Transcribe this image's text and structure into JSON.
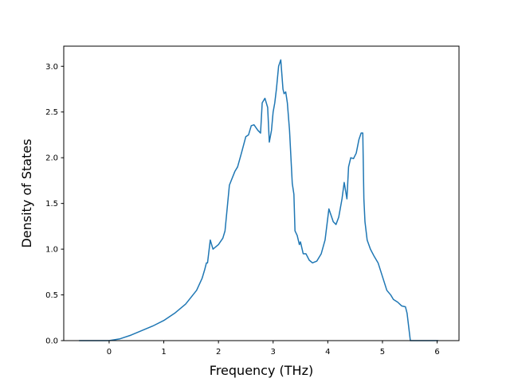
{
  "chart_data": {
    "type": "line",
    "title": "",
    "xlabel": "Frequency (THz)",
    "ylabel": "Density of States",
    "xlim": [
      -0.83,
      6.4
    ],
    "ylim": [
      0.0,
      3.22
    ],
    "grid": false,
    "legend": "none",
    "line_color": "#1f77b4",
    "x_ticks": [
      0,
      1,
      2,
      3,
      4,
      5,
      6
    ],
    "y_ticks": [
      0.0,
      0.5,
      1.0,
      1.5,
      2.0,
      2.5,
      3.0
    ],
    "x_tick_labels": [
      "0",
      "1",
      "2",
      "3",
      "4",
      "5",
      "6"
    ],
    "y_tick_labels": [
      "0.0",
      "0.5",
      "1.0",
      "1.5",
      "2.0",
      "2.5",
      "3.0"
    ],
    "series": [
      {
        "x": [
          -0.55,
          -0.3,
          0.0,
          0.2,
          0.4,
          0.6,
          0.8,
          1.0,
          1.2,
          1.4,
          1.6,
          1.7,
          1.75,
          1.78,
          1.8,
          1.85,
          1.9,
          2.0,
          2.08,
          2.12,
          2.2,
          2.3,
          2.35,
          2.42,
          2.5,
          2.55,
          2.6,
          2.65,
          2.72,
          2.77,
          2.8,
          2.85,
          2.9,
          2.93,
          2.97,
          3.0,
          3.03,
          3.06,
          3.1,
          3.14,
          3.18,
          3.2,
          3.23,
          3.26,
          3.3,
          3.35,
          3.38,
          3.4,
          3.44,
          3.48,
          3.5,
          3.55,
          3.6,
          3.66,
          3.72,
          3.8,
          3.88,
          3.95,
          4.02,
          4.1,
          4.15,
          4.2,
          4.26,
          4.3,
          4.35,
          4.38,
          4.42,
          4.47,
          4.52,
          4.57,
          4.61,
          4.64,
          4.66,
          4.68,
          4.72,
          4.78,
          4.85,
          4.92,
          5.0,
          5.08,
          5.15,
          5.2,
          5.28,
          5.35,
          5.42,
          5.45,
          5.48,
          5.51,
          5.55,
          5.75,
          6.02
        ],
        "y": [
          0.0,
          0.0,
          0.0,
          0.02,
          0.06,
          0.11,
          0.16,
          0.22,
          0.3,
          0.4,
          0.55,
          0.68,
          0.78,
          0.85,
          0.85,
          1.1,
          1.0,
          1.05,
          1.12,
          1.2,
          1.7,
          1.85,
          1.9,
          2.05,
          2.23,
          2.25,
          2.35,
          2.36,
          2.3,
          2.27,
          2.6,
          2.65,
          2.55,
          2.17,
          2.3,
          2.5,
          2.6,
          2.75,
          3.0,
          3.07,
          2.75,
          2.7,
          2.72,
          2.6,
          2.3,
          1.72,
          1.6,
          1.2,
          1.15,
          1.05,
          1.08,
          0.95,
          0.95,
          0.88,
          0.85,
          0.87,
          0.95,
          1.1,
          1.44,
          1.3,
          1.27,
          1.35,
          1.55,
          1.73,
          1.55,
          1.9,
          2.0,
          1.99,
          2.05,
          2.2,
          2.27,
          2.27,
          1.55,
          1.3,
          1.1,
          1.0,
          0.92,
          0.85,
          0.7,
          0.55,
          0.5,
          0.45,
          0.42,
          0.38,
          0.37,
          0.3,
          0.15,
          0.0,
          0.0,
          0.0,
          0.0
        ]
      }
    ]
  }
}
